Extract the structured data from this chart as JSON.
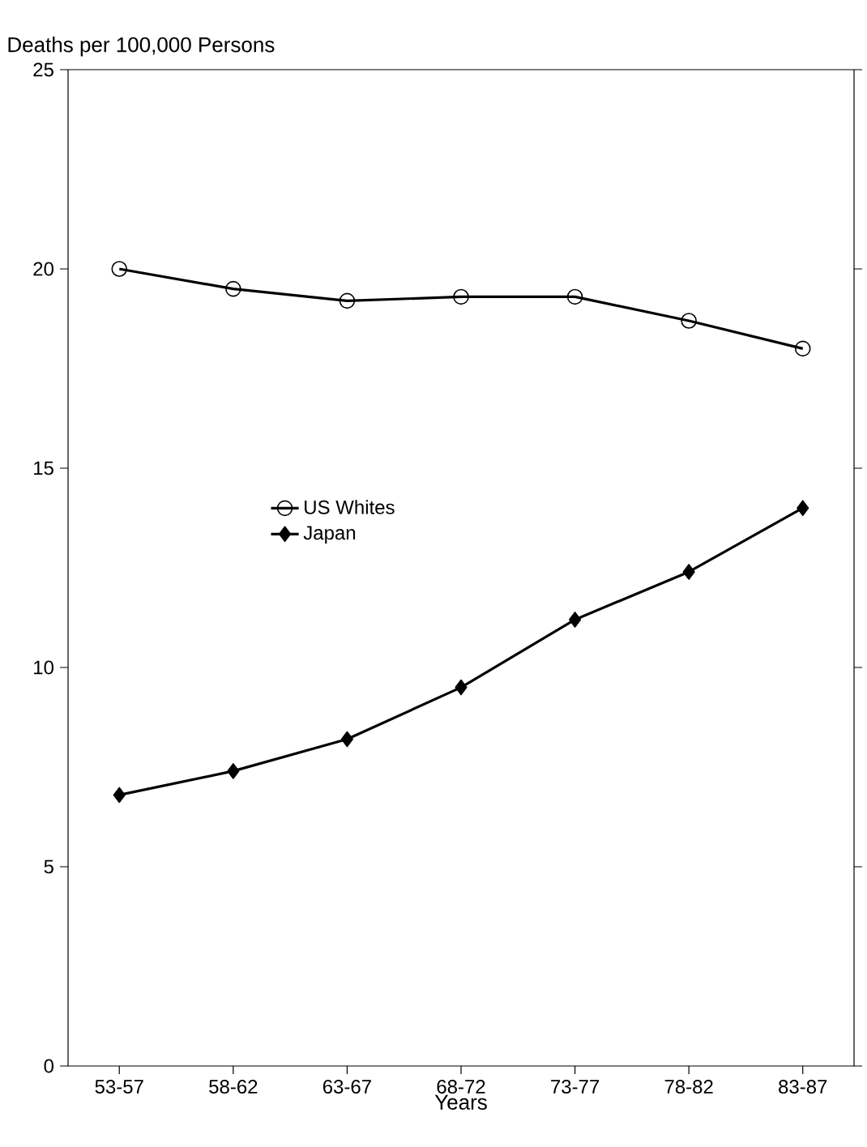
{
  "chart_data": {
    "type": "line",
    "ylabel": "Deaths per 100,000 Persons",
    "xlabel": "Years",
    "categories": [
      "53-57",
      "58-62",
      "63-67",
      "68-72",
      "73-77",
      "78-82",
      "83-87"
    ],
    "series": [
      {
        "name": "US Whites",
        "color": "#000000",
        "marker": "circle",
        "values": [
          20.0,
          19.5,
          19.2,
          19.3,
          19.3,
          18.7,
          18.0
        ]
      },
      {
        "name": "Japan",
        "color": "#000000",
        "marker": "diamond",
        "values": [
          6.8,
          7.4,
          8.2,
          9.5,
          11.2,
          12.4,
          14.0
        ]
      }
    ],
    "ylim": [
      0,
      25
    ],
    "yticks": [
      0,
      5,
      10,
      15,
      20,
      25
    ],
    "legend": "center",
    "line_style": "solid",
    "grid": false
  }
}
